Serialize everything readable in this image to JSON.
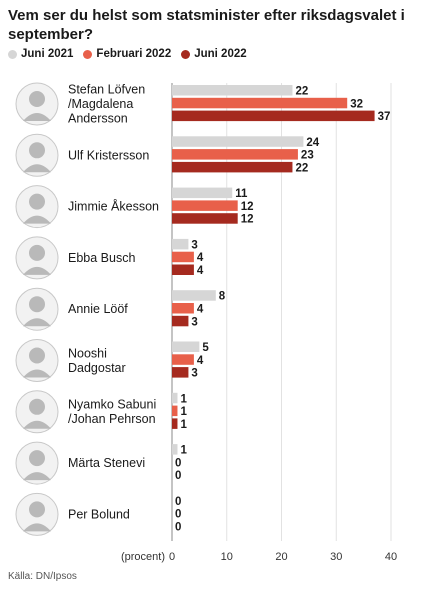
{
  "title": "Vem ser du helst som statsminister efter riksdagsvalet i september?",
  "source": "Källa: DN/Ipsos",
  "colors": {
    "Juni 2021": "#d6d6d6",
    "Februari 2022": "#e8604a",
    "Juni 2022": "#a52a1f"
  },
  "chart_data": {
    "type": "bar",
    "orientation": "horizontal",
    "title": "Vem ser du helst som statsminister efter riksdagsvalet i september?",
    "xlabel": "(procent)",
    "ylabel": "",
    "xlim": [
      0,
      40
    ],
    "xticks": [
      0,
      10,
      20,
      30,
      40
    ],
    "grid": true,
    "legend": "top-left",
    "categories": [
      "Stefan Löfven\n/Magdalena\nAndersson",
      "Ulf Kristersson",
      "Jimmie Åkesson",
      "Ebba Busch",
      "Annie Lööf",
      "Nooshi\nDadgostar",
      "Nyamko Sabuni\n/Johan Pehrson",
      "Märta Stenevi",
      "Per Bolund"
    ],
    "series": [
      {
        "name": "Juni 2021",
        "values": [
          22,
          24,
          11,
          3,
          8,
          5,
          1,
          1,
          0
        ]
      },
      {
        "name": "Februari 2022",
        "values": [
          32,
          23,
          12,
          4,
          4,
          4,
          1,
          0,
          0
        ]
      },
      {
        "name": "Juni 2022",
        "values": [
          37,
          22,
          12,
          4,
          3,
          3,
          1,
          0,
          0
        ]
      }
    ]
  }
}
